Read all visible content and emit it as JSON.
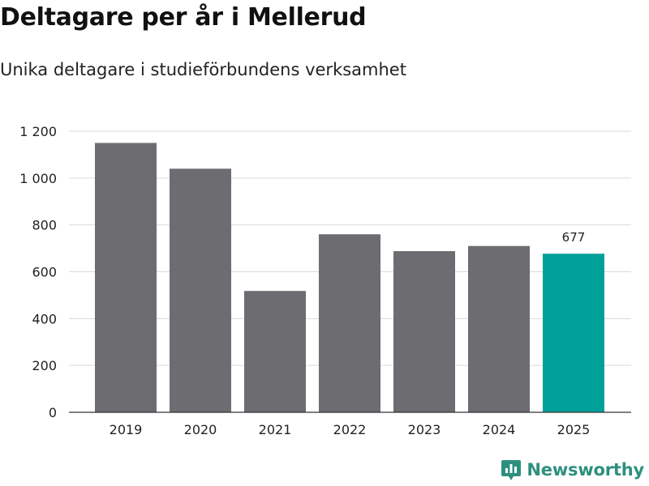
{
  "title": "Deltagare per år i Mellerud",
  "subtitle": "Unika deltagare i studieförbundens verksamhet",
  "brand": "Newsworthy",
  "colors": {
    "bar_default": "#6d6c71",
    "bar_highlight": "#00a19a",
    "grid": "#d9d9d9",
    "axis": "#333333",
    "brand": "#2e8f7f"
  },
  "chart_data": {
    "type": "bar",
    "title": "Deltagare per år i Mellerud",
    "subtitle": "Unika deltagare i studieförbundens verksamhet",
    "xlabel": "",
    "ylabel": "",
    "categories": [
      "2019",
      "2020",
      "2021",
      "2022",
      "2023",
      "2024",
      "2025"
    ],
    "values": [
      1150,
      1040,
      518,
      760,
      688,
      710,
      677
    ],
    "highlight_index": 6,
    "data_labels": [
      {
        "index": 6,
        "text": "677"
      }
    ],
    "ylim": [
      0,
      1200
    ],
    "yticks": [
      0,
      200,
      400,
      600,
      800,
      1000,
      1200
    ],
    "ytick_labels": [
      "0",
      "200",
      "400",
      "600",
      "800",
      "1 000",
      "1 200"
    ],
    "grid": true
  }
}
